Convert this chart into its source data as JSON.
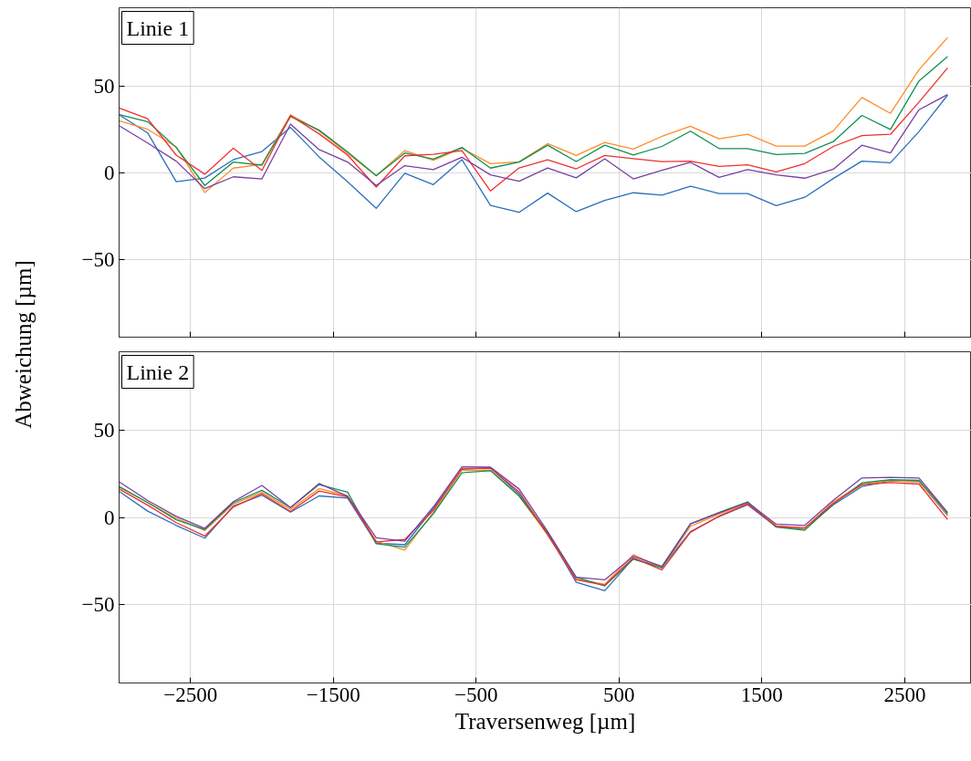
{
  "chart_data": [
    {
      "type": "line",
      "annotations": [
        "Linie 1"
      ],
      "ylabel": "Abweichung [µm]",
      "tick_labels": "y",
      "grid": true,
      "x": [
        -3000,
        -2800,
        -2600,
        -2400,
        -2200,
        -2000,
        -1800,
        -1600,
        -1400,
        -1200,
        -1000,
        -800,
        -600,
        -400,
        -200,
        0,
        200,
        400,
        600,
        800,
        1000,
        1200,
        1400,
        1600,
        1800,
        2000,
        2200,
        2400,
        2600,
        2800
      ],
      "xlim": [
        -3000,
        2967
      ],
      "xticks": [
        {
          "value": -2500,
          "label": null
        },
        {
          "value": -1500,
          "label": null
        },
        {
          "value": -500,
          "label": null
        },
        {
          "value": 500,
          "label": null
        },
        {
          "value": 1500,
          "label": null
        },
        {
          "value": 2500,
          "label": null
        }
      ],
      "ylim": [
        -95,
        95
      ],
      "yticks": [
        {
          "value": -50,
          "label": "−50"
        },
        0,
        50
      ],
      "series": [
        {
          "color": "#2a6ebb",
          "values": [
            33.3,
            22.8,
            -5.3,
            -3.2,
            7.4,
            12.1,
            26,
            9,
            -5.4,
            -20.7,
            -0.5,
            -7,
            7.4,
            -19,
            -23,
            -11.9,
            -22.6,
            -16.1,
            -11.7,
            -13.1,
            -7.9,
            -12.2,
            -12.2,
            -19.1,
            -14.3,
            -3.5,
            6.5,
            5.6,
            23.6,
            44.6
          ]
        },
        {
          "color": "#ff8c2a",
          "values": [
            29.8,
            24.9,
            14.7,
            -11.6,
            2.5,
            4.7,
            33.3,
            24,
            10.9,
            -1.9,
            12.6,
            7,
            14,
            5.1,
            6.1,
            16.6,
            9.8,
            17.3,
            13.5,
            20.8,
            26.6,
            19.4,
            22,
            15.2,
            15.2,
            24,
            43.2,
            34.1,
            59.3,
            77.8
          ]
        },
        {
          "color": "#109050",
          "values": [
            33.3,
            29.3,
            14.4,
            -7.5,
            6,
            4.2,
            32.3,
            24.4,
            11.8,
            -1.9,
            11.2,
            7.7,
            14.4,
            2.5,
            6,
            15.7,
            6.3,
            15.7,
            10.1,
            15,
            23.8,
            13.8,
            13.8,
            10.3,
            11,
            17.8,
            32.9,
            24.8,
            52.8,
            66.8
          ]
        },
        {
          "color": "#f03030",
          "values": [
            37.2,
            31,
            10,
            -1,
            14,
            1.2,
            32.8,
            22.3,
            10,
            -8.4,
            9.6,
            10.5,
            12.6,
            -10.7,
            2.6,
            7.3,
            2.1,
            9.8,
            8,
            6.3,
            6.5,
            3.5,
            4.4,
            0.3,
            5.1,
            15,
            21.2,
            22,
            40.6,
            60.3
          ]
        },
        {
          "color": "#7a3fa0",
          "values": [
            27,
            17,
            6.5,
            -9.3,
            -2.5,
            -3.7,
            27.9,
            13.2,
            6,
            -7.5,
            3.9,
            1.6,
            8.8,
            -1.4,
            -5.1,
            2.6,
            -3.1,
            7.9,
            -3.7,
            1.2,
            5.8,
            -2.8,
            1.7,
            -1.4,
            -3.3,
            1.9,
            15.7,
            11.2,
            36.2,
            44.9
          ]
        }
      ]
    },
    {
      "type": "line",
      "annotations": [
        "Linie 2"
      ],
      "xlabel": "Traversenweg [µm]",
      "grid": true,
      "x": [
        -3000,
        -2800,
        -2600,
        -2400,
        -2200,
        -2000,
        -1800,
        -1600,
        -1400,
        -1200,
        -1000,
        -800,
        -600,
        -400,
        -200,
        0,
        200,
        400,
        600,
        800,
        1000,
        1200,
        1400,
        1600,
        1800,
        2000,
        2200,
        2400,
        2600,
        2800
      ],
      "xlim": [
        -3000,
        2967
      ],
      "xticks": [
        {
          "value": -2500,
          "label": "−2500"
        },
        {
          "value": -1500,
          "label": "−1500"
        },
        {
          "value": -500,
          "label": "−500"
        },
        500,
        1500,
        2500
      ],
      "ylim": [
        -95,
        95
      ],
      "yticks": [
        {
          "value": -50,
          "label": "−50"
        },
        0,
        50
      ],
      "series": [
        {
          "color": "#2a6ebb",
          "values": [
            14.9,
            3.6,
            -4.6,
            -11.9,
            6.5,
            12.7,
            3,
            12.3,
            11.1,
            -14.7,
            -15.7,
            5,
            27.6,
            28.4,
            13.5,
            -9,
            -37.2,
            -42.1,
            -23.5,
            -28.8,
            -8.2,
            0.5,
            7.2,
            -5.4,
            -6.7,
            7.2,
            17.7,
            20.9,
            20.5,
            1.1
          ]
        },
        {
          "color": "#ff8c2a",
          "values": [
            17.3,
            8.5,
            -0.4,
            -7.5,
            7.7,
            14.3,
            4.6,
            16.5,
            12.3,
            -13.7,
            -18.8,
            3,
            27,
            27.2,
            12.3,
            -10,
            -35.4,
            -38.4,
            -21.4,
            -29.1,
            -5.1,
            1.9,
            8.1,
            -4.9,
            -6.5,
            8.9,
            19.1,
            21,
            20.4,
            1.6
          ]
        },
        {
          "color": "#109050",
          "values": [
            17.7,
            8.5,
            -1.4,
            -7,
            8.5,
            15.5,
            5.6,
            18.8,
            14.5,
            -15.1,
            -17.1,
            2,
            25.6,
            26.8,
            12.3,
            -9,
            -34.4,
            -39.3,
            -24,
            -28.8,
            -3.7,
            2.8,
            8.9,
            -5.6,
            -7.4,
            7.7,
            19.8,
            21.6,
            21.2,
            2.3
          ]
        },
        {
          "color": "#f03030",
          "values": [
            16.3,
            7,
            -3,
            -10.7,
            6,
            13.5,
            3.4,
            15.1,
            11.7,
            -14.1,
            -12.7,
            4,
            28,
            28.2,
            14.7,
            -10,
            -35.8,
            -38.9,
            -23.2,
            -30.2,
            -8.6,
            0.7,
            7.7,
            -5.1,
            -6,
            8.1,
            18.8,
            20,
            19.1,
            -1.2
          ]
        },
        {
          "color": "#7a3fa0",
          "values": [
            20.4,
            9.7,
            0.6,
            -6.3,
            9,
            18.3,
            5.6,
            19.4,
            12.1,
            -11.7,
            -13.7,
            6,
            29,
            28.8,
            16.3,
            -8,
            -34.4,
            -35.8,
            -22.3,
            -28.1,
            -3.7,
            2.5,
            8.6,
            -3.9,
            -4.6,
            9.8,
            22.6,
            23,
            22.6,
            2.8
          ]
        }
      ]
    }
  ]
}
